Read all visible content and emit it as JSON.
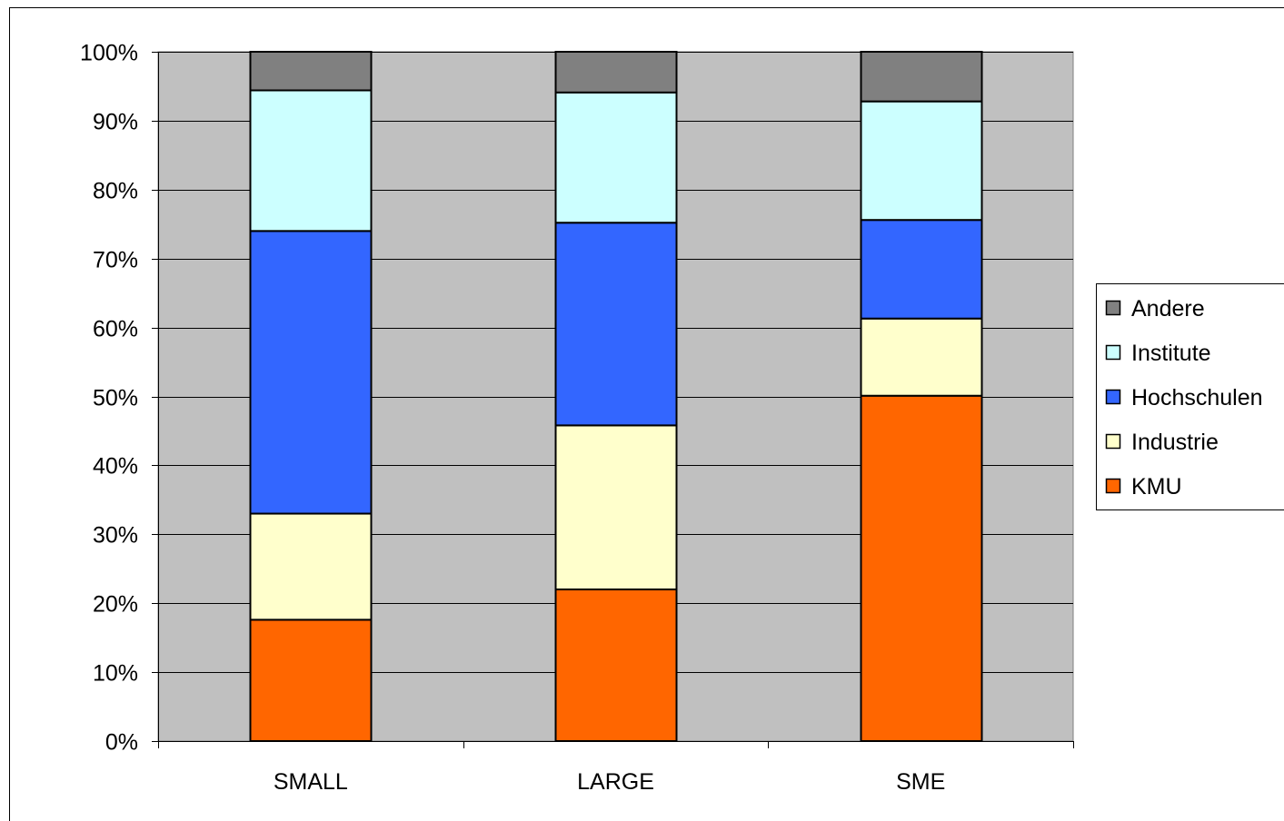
{
  "chart_data": {
    "type": "bar",
    "stacked": true,
    "percent": true,
    "title": "",
    "xlabel": "",
    "ylabel": "",
    "categories": [
      "SMALL",
      "LARGE",
      "SME"
    ],
    "ylim": [
      0,
      100
    ],
    "yticks": [
      "0%",
      "10%",
      "20%",
      "30%",
      "40%",
      "50%",
      "60%",
      "70%",
      "80%",
      "90%",
      "100%"
    ],
    "grid": true,
    "legend": "right",
    "plot_background": "#c0c0c0",
    "series": [
      {
        "name": "KMU",
        "color": "#ff6600",
        "values": [
          17.6,
          22.0,
          50.1
        ]
      },
      {
        "name": "Industrie",
        "color": "#ffffcc",
        "values": [
          15.4,
          23.8,
          11.2
        ]
      },
      {
        "name": "Hochschulen",
        "color": "#3366ff",
        "values": [
          41.0,
          29.4,
          14.3
        ]
      },
      {
        "name": "Institute",
        "color": "#ccffff",
        "values": [
          20.4,
          18.9,
          17.2
        ]
      },
      {
        "name": "Andere",
        "color": "#808080",
        "values": [
          5.6,
          5.9,
          7.2
        ]
      }
    ]
  }
}
